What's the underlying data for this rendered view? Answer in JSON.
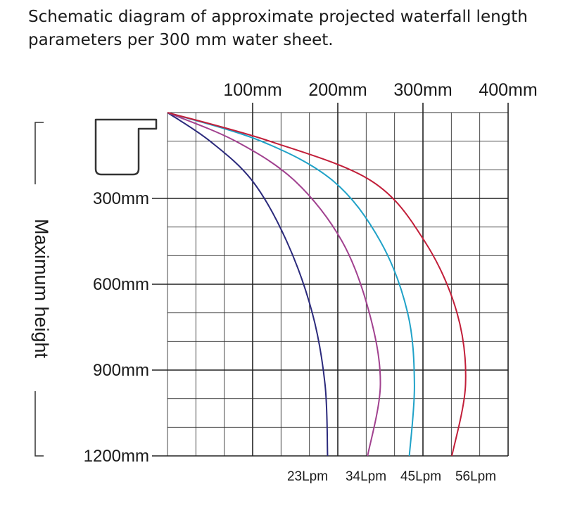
{
  "title_lines": [
    "Schematic diagram of approximate projected waterfall length",
    "parameters per 300 mm water sheet."
  ],
  "chart_data": {
    "type": "line",
    "title": "Schematic diagram of approximate projected waterfall length parameters per 300 mm water sheet.",
    "xlabel": "",
    "ylabel": "Maximum height",
    "x_unit": "mm",
    "y_unit": "mm",
    "xlim": [
      0,
      400
    ],
    "ylim": [
      0,
      1200
    ],
    "y_inverted": true,
    "x_ticks": [
      100,
      200,
      300,
      400
    ],
    "x_tick_labels": [
      "100mm",
      "200mm",
      "300mm",
      "400mm"
    ],
    "y_ticks": [
      300,
      600,
      900,
      1200
    ],
    "y_tick_labels": [
      "300mm",
      "600mm",
      "900mm",
      "1200mm"
    ],
    "grid": true,
    "series": [
      {
        "name": "23Lpm",
        "color": "#2b2a7c",
        "x": [
          0,
          50,
          100,
          140,
          170,
          185,
          188
        ],
        "y": [
          0,
          100,
          240,
          450,
          700,
          950,
          1200
        ]
      },
      {
        "name": "34Lpm",
        "color": "#a1418f",
        "x": [
          0,
          80,
          150,
          205,
          237,
          250,
          235
        ],
        "y": [
          0,
          100,
          240,
          450,
          700,
          950,
          1200
        ]
      },
      {
        "name": "45Lpm",
        "color": "#20a2c8",
        "x": [
          0,
          110,
          195,
          250,
          282,
          290,
          284
        ],
        "y": [
          0,
          100,
          240,
          450,
          700,
          950,
          1200
        ]
      },
      {
        "name": "56Lpm",
        "color": "#c21f3a",
        "x": [
          0,
          120,
          240,
          302,
          340,
          350,
          334
        ],
        "y": [
          0,
          100,
          240,
          450,
          700,
          950,
          1200
        ]
      }
    ]
  }
}
